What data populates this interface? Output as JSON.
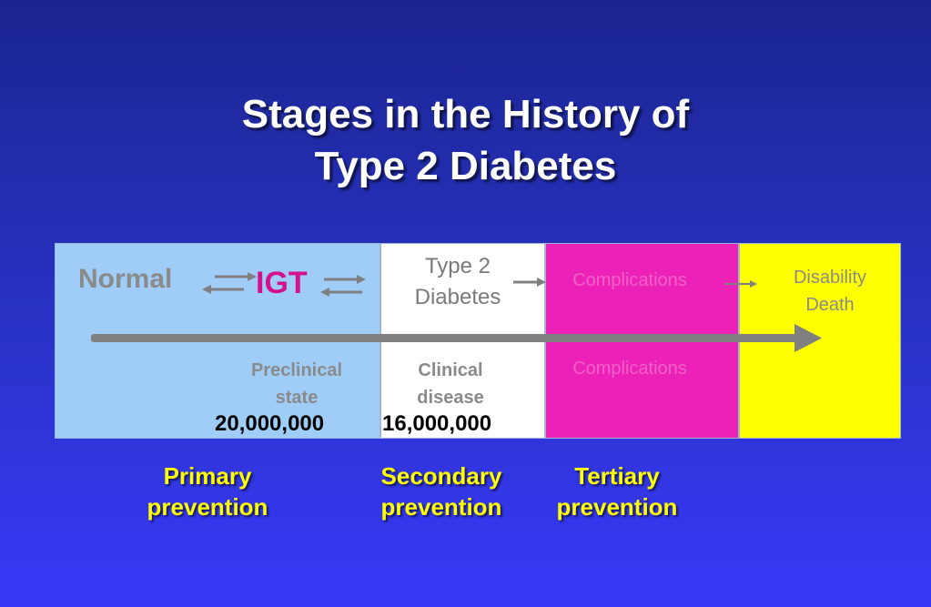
{
  "title": {
    "line1": "Stages in the History of",
    "line2": "Type 2 Diabetes"
  },
  "stages": {
    "normal": "Normal",
    "igt": "IGT",
    "type2_line1": "Type 2",
    "type2_line2": "Diabetes",
    "complications_top": "Complications",
    "disability": "Disability",
    "death": "Death"
  },
  "states": {
    "preclinical_line1": "Preclinical",
    "preclinical_line2": "state",
    "clinical_line1": "Clinical",
    "clinical_line2": "disease",
    "complications_bottom": "Complications"
  },
  "counts": {
    "preclinical": "20,000,000",
    "clinical": "16,000,000"
  },
  "prevention": {
    "primary_line1": "Primary",
    "primary_line2": "prevention",
    "secondary_line1": "Secondary",
    "secondary_line2": "prevention",
    "tertiary_line1": "Tertiary",
    "tertiary_line2": "prevention"
  },
  "colors": {
    "background": "#2a33c8",
    "preclinical_panel": "#9fcdf7",
    "clinical_panel": "#ffffff",
    "complications_panel": "#ec22b8",
    "disability_panel": "#ffff00",
    "prevention_text": "#ffff00",
    "igt_text": "#d4108c",
    "arrow": "#808080"
  }
}
